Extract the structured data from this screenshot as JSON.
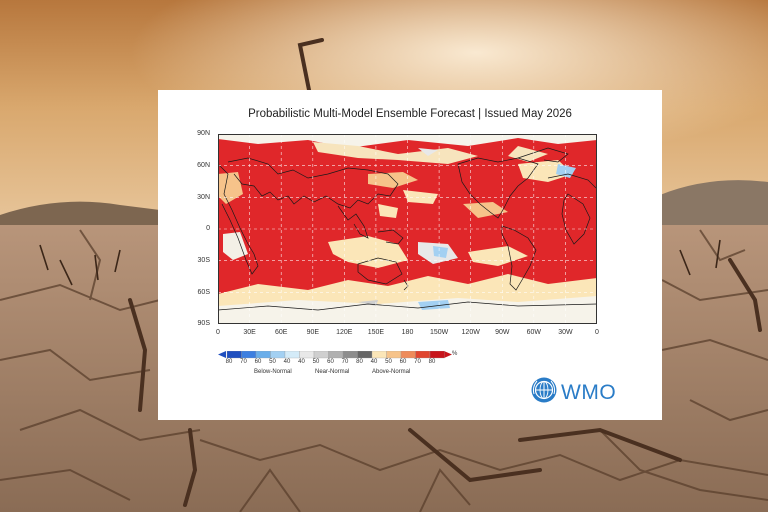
{
  "title": "Probabilistic Multi-Model Ensemble Forecast | Issued May 2026",
  "lat_labels": [
    "90N",
    "60N",
    "30N",
    "0",
    "30S",
    "60S",
    "90S"
  ],
  "lon_labels": [
    "0",
    "30E",
    "60E",
    "90E",
    "120E",
    "150E",
    "180",
    "150W",
    "120W",
    "90W",
    "60W",
    "30W",
    "0"
  ],
  "legend": {
    "numbers": [
      "80",
      "70",
      "60",
      "50",
      "40",
      "40",
      "50",
      "60",
      "70",
      "80",
      "40",
      "50",
      "60",
      "70",
      "80"
    ],
    "unit": "%",
    "below": "Below-Normal",
    "near": "Near-Normal",
    "above": "Above-Normal",
    "colors": {
      "below": [
        "#1f4fbf",
        "#3d7fe0",
        "#6aaeea",
        "#a3d0f2",
        "#d4ebf8"
      ],
      "near": [
        "#e8e8e8",
        "#cfcfcf",
        "#b0b0b0",
        "#8d8d8d",
        "#666666"
      ],
      "above": [
        "#fbe6b8",
        "#f6c38a",
        "#ee8b5a",
        "#e0452f",
        "#c8141b"
      ]
    }
  },
  "logo": {
    "text": "WMO",
    "icon": "wmo-emblem-icon"
  },
  "colors": {
    "brand": "#2a7cc7",
    "warm": "#e02a22"
  }
}
